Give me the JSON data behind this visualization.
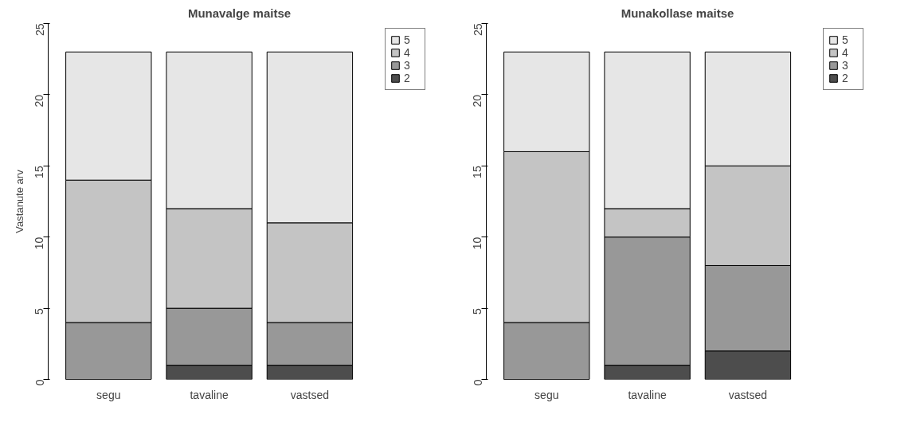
{
  "chart_data": [
    {
      "type": "bar",
      "title": "Munavalge maitse",
      "ylabel": "Vastanute arv",
      "categories": [
        "segu",
        "tavaline",
        "vastsed"
      ],
      "stacked": true,
      "legend": "right",
      "grid": false,
      "ylim": [
        0,
        25
      ],
      "yticks": [
        0,
        5,
        10,
        15,
        20,
        25
      ],
      "series": [
        {
          "name": "2",
          "color": "#4d4d4d",
          "values": [
            0,
            1,
            1
          ]
        },
        {
          "name": "3",
          "color": "#989898",
          "values": [
            4,
            4,
            3
          ]
        },
        {
          "name": "4",
          "color": "#c4c4c4",
          "values": [
            10,
            7,
            7
          ]
        },
        {
          "name": "5",
          "color": "#e6e6e6",
          "values": [
            9,
            11,
            12
          ]
        }
      ]
    },
    {
      "type": "bar",
      "title": "Munakollase maitse",
      "categories": [
        "segu",
        "tavaline",
        "vastsed"
      ],
      "stacked": true,
      "legend": "right",
      "grid": false,
      "ylim": [
        0,
        25
      ],
      "yticks": [
        0,
        5,
        10,
        15,
        20,
        25
      ],
      "series": [
        {
          "name": "2",
          "color": "#4d4d4d",
          "values": [
            0,
            1,
            2
          ]
        },
        {
          "name": "3",
          "color": "#989898",
          "values": [
            4,
            9,
            6
          ]
        },
        {
          "name": "4",
          "color": "#c4c4c4",
          "values": [
            12,
            2,
            7
          ]
        },
        {
          "name": "5",
          "color": "#e6e6e6",
          "values": [
            7,
            11,
            8
          ]
        }
      ]
    }
  ]
}
